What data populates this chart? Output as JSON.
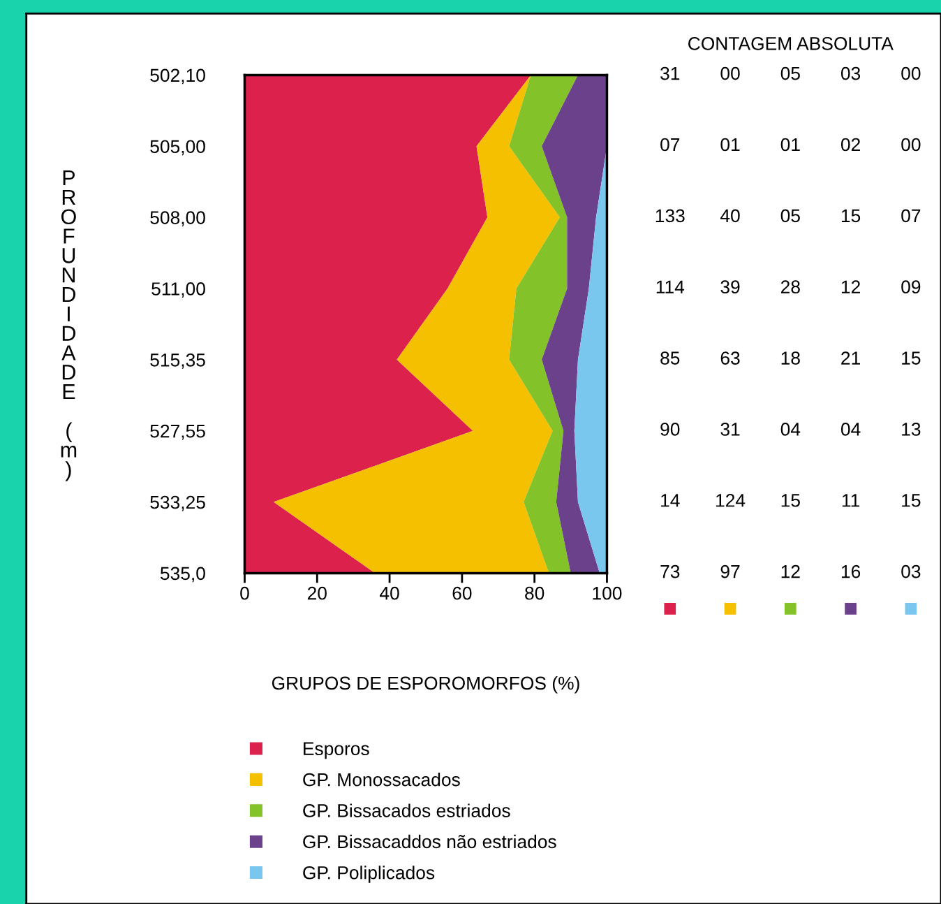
{
  "chart_data": [
    {
      "type": "area",
      "stacked": true,
      "orientation": "horizontal",
      "categories": [
        "502,10",
        "505,00",
        "508,00",
        "511,00",
        "515,35",
        "527,55",
        "533,25",
        "535,0"
      ],
      "xlabel": "GRUPOS DE ESPOROMORFOS (%)",
      "ylabel": "PROFUNDIDADE (m)",
      "xlim": [
        0,
        100
      ],
      "xticks": [
        0,
        20,
        40,
        60,
        80,
        100
      ],
      "grid": false,
      "legend": "bottom",
      "series": [
        {
          "name": "Esporos",
          "color": "#db214c",
          "values": [
            79,
            64,
            67,
            56,
            42,
            63,
            8,
            36
          ]
        },
        {
          "name": "GP. Monossacados",
          "color": "#f5c000",
          "values": [
            0,
            9,
            20,
            19,
            31,
            22,
            69,
            48
          ]
        },
        {
          "name": "GP. Bissacados estriados",
          "color": "#84c22a",
          "values": [
            13,
            9,
            2,
            14,
            9,
            3,
            9,
            6
          ]
        },
        {
          "name": "GP. Bissacaddos não estriados",
          "color": "#6c418c",
          "values": [
            8,
            18,
            8,
            6,
            10,
            3,
            6,
            8
          ]
        },
        {
          "name": "GP. Poliplicados",
          "color": "#79c6ee",
          "values": [
            0,
            0,
            3,
            5,
            8,
            9,
            8,
            2
          ]
        }
      ]
    },
    {
      "type": "other",
      "title": "CONTAGEM ABSOLUTA",
      "colors": [
        "#db214c",
        "#f5c000",
        "#84c22a",
        "#6c418c",
        "#79c6ee"
      ],
      "cell_labels": [
        [
          "31",
          "00",
          "05",
          "03",
          "00"
        ],
        [
          "07",
          "01",
          "01",
          "02",
          "00"
        ],
        [
          "133",
          "40",
          "05",
          "15",
          "07"
        ],
        [
          "114",
          "39",
          "28",
          "12",
          "09"
        ],
        [
          "85",
          "63",
          "18",
          "21",
          "15"
        ],
        [
          "90",
          "31",
          "04",
          "04",
          "13"
        ],
        [
          "14",
          "124",
          "15",
          "11",
          "15"
        ],
        [
          "73",
          "97",
          "12",
          "16",
          "03"
        ]
      ]
    }
  ]
}
